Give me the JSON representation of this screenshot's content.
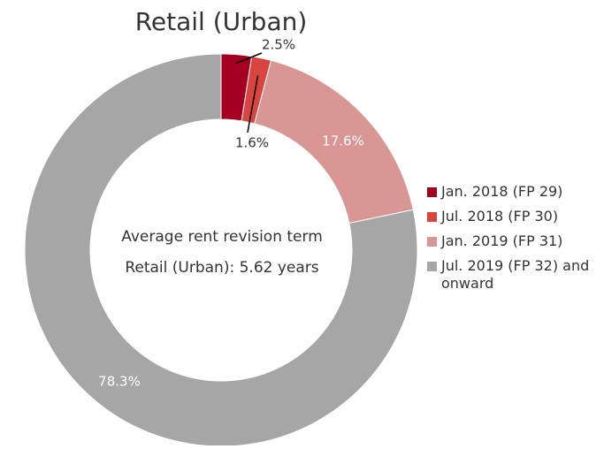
{
  "chart_data": {
    "type": "donut",
    "title": "Retail (Urban)",
    "center_text": [
      "Average rent revision term",
      "Retail (Urban): 5.62 years"
    ],
    "categories": [
      "Jan. 2018 (FP 29)",
      "Jul. 2018 (FP 30)",
      "Jan. 2019 (FP 31)",
      "Jul. 2019 (FP 32) and onward"
    ],
    "values": [
      2.5,
      1.6,
      17.6,
      78.3
    ],
    "value_labels": [
      "2.5%",
      "1.6%",
      "17.6%",
      "78.3%"
    ],
    "colors": [
      "#a50021",
      "#d9443f",
      "#da9694",
      "#a6a6a6"
    ]
  }
}
